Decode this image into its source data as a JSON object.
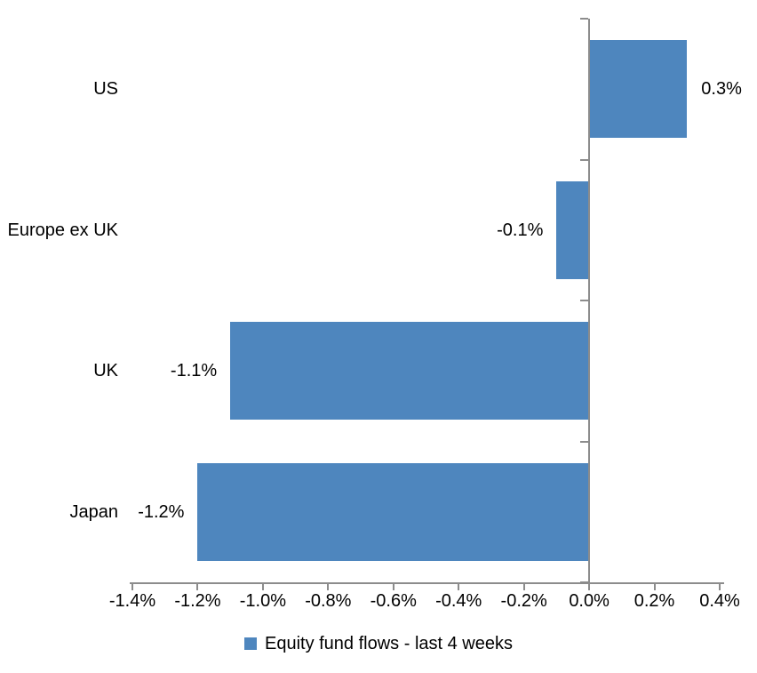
{
  "chart_data": {
    "type": "bar",
    "orientation": "horizontal",
    "title": "",
    "xlabel": "",
    "ylabel": "",
    "categories": [
      "US",
      "Europe ex UK",
      "UK",
      "Japan"
    ],
    "series": [
      {
        "name": "Equity fund flows - last 4 weeks",
        "values": [
          0.3,
          -0.1,
          -1.1,
          -1.2
        ],
        "value_labels": [
          "0.3%",
          "-0.1%",
          "-1.1%",
          "-1.2%"
        ]
      }
    ],
    "series_name": "Equity fund flows - last 4 weeks",
    "xlim": [
      -1.4,
      0.4
    ],
    "x_ticks": [
      -1.4,
      -1.2,
      -1.0,
      -0.8,
      -0.6,
      -0.4,
      -0.2,
      0.0,
      0.2,
      0.4
    ],
    "x_tick_labels": [
      "-1.4%",
      "-1.2%",
      "-1.0%",
      "-0.8%",
      "-0.6%",
      "-0.4%",
      "-0.2%",
      "0.0%",
      "0.2%",
      "0.4%"
    ],
    "grid": false,
    "legend_position": "bottom",
    "value_axis_cross": 0.0,
    "colors": {
      "bar": "#4e86be",
      "axis": "#8c8c8c",
      "text": "#000000",
      "background": "#ffffff"
    }
  }
}
